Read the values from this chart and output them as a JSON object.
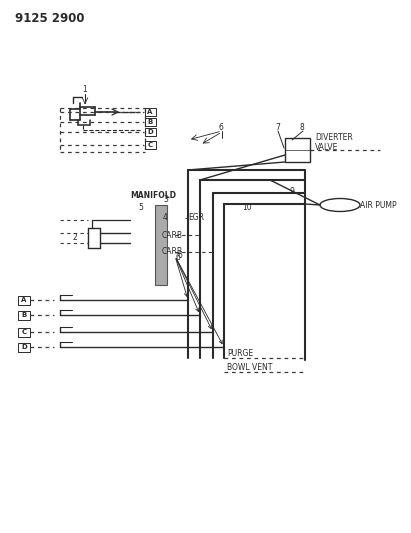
{
  "title": "9125 2900",
  "bg_color": "#ffffff",
  "lc": "#2a2a2a",
  "dc": "#3a3a3a",
  "labels": {
    "manifold": "MANIFOLD",
    "egr": "EGR",
    "carb1": "CARB",
    "carb2": "CARB",
    "purge": "PURGE",
    "bowl_vent": "BOWL VENT",
    "diverter": "DIVERTER\nVALVE",
    "air_pump": "AIR PUMP"
  },
  "numbers": [
    "1",
    "2",
    "3",
    "4",
    "5",
    "6",
    "6",
    "6",
    "7",
    "8",
    "9",
    "10"
  ],
  "box_labels": [
    "A",
    "B",
    "D",
    "C"
  ],
  "side_boxes": [
    "A",
    "B",
    "C",
    "D"
  ]
}
